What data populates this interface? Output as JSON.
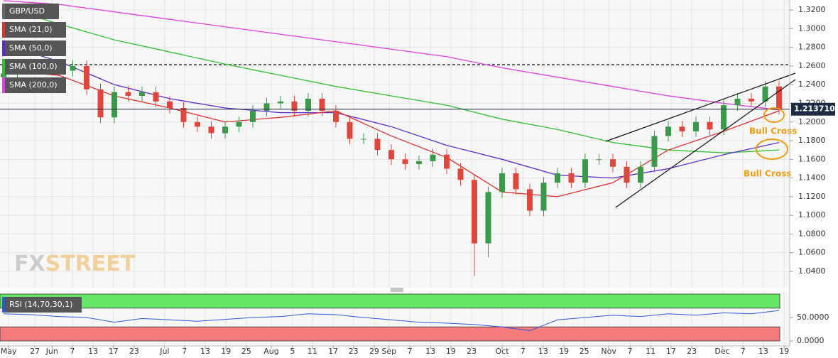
{
  "chart_data": [
    {
      "type": "candlestick",
      "name": "GBP/USD",
      "xlim": [
        0,
        170
      ],
      "ylim": [
        1.0225,
        1.3307
      ],
      "yticks": [
        {
          "value": 1.32,
          "label": "1.3200"
        },
        {
          "value": 1.3,
          "label": "1.3000"
        },
        {
          "value": 1.28,
          "label": "1.2800"
        },
        {
          "value": 1.26,
          "label": "1.2600"
        },
        {
          "value": 1.24,
          "label": "1.2400"
        },
        {
          "value": 1.22,
          "label": "1.2200"
        },
        {
          "value": 1.2,
          "label": "1.2000"
        },
        {
          "value": 1.18,
          "label": "1.1800"
        },
        {
          "value": 1.16,
          "label": "1.1600"
        },
        {
          "value": 1.14,
          "label": "1.1400"
        },
        {
          "value": 1.12,
          "label": "1.1200"
        },
        {
          "value": 1.1,
          "label": "1.1000"
        },
        {
          "value": 1.08,
          "label": "1.0800"
        },
        {
          "value": 1.06,
          "label": "1.0600"
        },
        {
          "value": 1.04,
          "label": "1.0400"
        }
      ],
      "grid": true,
      "up_color": "#3a9a4a",
      "down_color": "#e0463c",
      "candles": {
        "x": [
          0,
          3,
          6,
          9,
          12,
          15,
          18,
          21,
          24,
          27,
          30,
          33,
          36,
          39,
          42,
          45,
          48,
          51,
          54,
          57,
          60,
          63,
          66,
          69,
          72,
          75,
          78,
          81,
          84,
          87,
          90,
          93,
          96,
          99,
          102,
          105,
          108,
          111,
          114,
          117,
          120,
          123,
          126,
          129,
          132,
          135,
          138,
          141,
          144,
          147,
          150,
          153,
          156,
          159,
          162,
          165,
          168
        ],
        "open": [
          1.248,
          1.252,
          1.258,
          1.262,
          1.258,
          1.255,
          1.26,
          1.235,
          1.205,
          1.232,
          1.228,
          1.232,
          1.222,
          1.215,
          1.2,
          1.195,
          1.188,
          1.195,
          1.2,
          1.212,
          1.22,
          1.222,
          1.212,
          1.225,
          1.212,
          1.2,
          1.182,
          1.182,
          1.17,
          1.16,
          1.155,
          1.158,
          1.165,
          1.15,
          1.138,
          1.07,
          1.125,
          1.145,
          1.128,
          1.105,
          1.135,
          1.145,
          1.135,
          1.16,
          1.16,
          1.152,
          1.135,
          1.152,
          1.185,
          1.195,
          1.19,
          1.2,
          1.192,
          1.218,
          1.225,
          1.222,
          1.238
        ],
        "high": [
          1.258,
          1.264,
          1.268,
          1.268,
          1.264,
          1.266,
          1.266,
          1.241,
          1.238,
          1.238,
          1.238,
          1.238,
          1.228,
          1.221,
          1.206,
          1.201,
          1.201,
          1.206,
          1.218,
          1.226,
          1.228,
          1.228,
          1.231,
          1.231,
          1.218,
          1.206,
          1.188,
          1.188,
          1.176,
          1.166,
          1.164,
          1.171,
          1.171,
          1.156,
          1.144,
          1.131,
          1.151,
          1.151,
          1.134,
          1.141,
          1.151,
          1.151,
          1.166,
          1.166,
          1.166,
          1.158,
          1.158,
          1.191,
          1.201,
          1.201,
          1.206,
          1.206,
          1.224,
          1.231,
          1.231,
          1.244,
          1.244
        ],
        "low": [
          1.242,
          1.246,
          1.252,
          1.252,
          1.249,
          1.249,
          1.229,
          1.199,
          1.199,
          1.222,
          1.222,
          1.216,
          1.209,
          1.194,
          1.189,
          1.182,
          1.182,
          1.189,
          1.194,
          1.206,
          1.214,
          1.206,
          1.206,
          1.206,
          1.194,
          1.176,
          1.176,
          1.164,
          1.154,
          1.149,
          1.149,
          1.152,
          1.144,
          1.132,
          1.035,
          1.055,
          1.119,
          1.122,
          1.099,
          1.099,
          1.129,
          1.129,
          1.129,
          1.154,
          1.146,
          1.129,
          1.129,
          1.146,
          1.179,
          1.184,
          1.184,
          1.186,
          1.186,
          1.212,
          1.216,
          1.216,
          1.208
        ],
        "close": [
          1.252,
          1.258,
          1.262,
          1.258,
          1.255,
          1.26,
          1.235,
          1.205,
          1.232,
          1.228,
          1.232,
          1.222,
          1.215,
          1.2,
          1.195,
          1.188,
          1.195,
          1.2,
          1.212,
          1.22,
          1.222,
          1.212,
          1.225,
          1.212,
          1.2,
          1.182,
          1.182,
          1.17,
          1.16,
          1.155,
          1.158,
          1.165,
          1.15,
          1.138,
          1.07,
          1.125,
          1.145,
          1.128,
          1.105,
          1.135,
          1.145,
          1.135,
          1.16,
          1.16,
          1.152,
          1.135,
          1.152,
          1.185,
          1.195,
          1.19,
          1.2,
          1.192,
          1.218,
          1.225,
          1.222,
          1.238,
          1.214
        ]
      },
      "series": [
        {
          "name": "SMA (21,0)",
          "color": "#e0302a",
          "x": [
            0,
            12,
            24,
            36,
            48,
            60,
            72,
            84,
            96,
            108,
            120,
            132,
            144,
            156,
            168
          ],
          "values": [
            1.255,
            1.25,
            1.228,
            1.215,
            1.2,
            1.205,
            1.212,
            1.185,
            1.162,
            1.125,
            1.12,
            1.135,
            1.17,
            1.19,
            1.212
          ]
        },
        {
          "name": "SMA (50,0)",
          "color": "#5b2bd1",
          "x": [
            0,
            12,
            24,
            36,
            48,
            60,
            72,
            84,
            96,
            108,
            120,
            132,
            144,
            156,
            168
          ],
          "values": [
            1.283,
            1.265,
            1.24,
            1.225,
            1.215,
            1.21,
            1.21,
            1.195,
            1.175,
            1.16,
            1.143,
            1.14,
            1.15,
            1.165,
            1.178
          ]
        },
        {
          "name": "SMA (100,0)",
          "color": "#2fbf2f",
          "x": [
            0,
            12,
            24,
            36,
            48,
            60,
            72,
            84,
            96,
            108,
            120,
            132,
            144,
            156,
            168
          ],
          "values": [
            1.323,
            1.305,
            1.288,
            1.275,
            1.262,
            1.25,
            1.238,
            1.228,
            1.218,
            1.203,
            1.192,
            1.178,
            1.17,
            1.167,
            1.17
          ]
        },
        {
          "name": "SMA (200,0)",
          "color": "#e040e0",
          "x": [
            0,
            12,
            24,
            36,
            48,
            60,
            72,
            84,
            96,
            108,
            120,
            132,
            144,
            156,
            168
          ],
          "values": [
            1.33,
            1.326,
            1.318,
            1.31,
            1.302,
            1.294,
            1.286,
            1.278,
            1.27,
            1.258,
            1.248,
            1.238,
            1.228,
            1.22,
            1.213
          ]
        }
      ],
      "last_price": {
        "value": 1.21371,
        "label": "1.213710"
      },
      "annotations": [
        "Bull Cross",
        "Bull Cross"
      ],
      "watermark": [
        "FX",
        "STREET"
      ]
    },
    {
      "type": "line",
      "xlim": [
        0,
        170
      ],
      "ylim": [
        0,
        100
      ],
      "yticks": [
        {
          "value": 50,
          "label": "50.0000"
        },
        {
          "value": 0,
          "label": "0.0000"
        }
      ],
      "bands": [
        {
          "from": 70,
          "to": 100,
          "color": "#66e666"
        },
        {
          "from": 0,
          "to": 30,
          "color": "#f47c7c"
        }
      ],
      "series": [
        {
          "name": "RSI (14,70,30,1)",
          "color": "#3355dd",
          "x": [
            0,
            6,
            12,
            18,
            24,
            30,
            36,
            42,
            48,
            54,
            60,
            66,
            72,
            78,
            84,
            90,
            96,
            102,
            108,
            114,
            120,
            126,
            132,
            138,
            144,
            150,
            156,
            162,
            168
          ],
          "values": [
            58,
            56,
            52,
            50,
            40,
            48,
            45,
            42,
            46,
            50,
            52,
            58,
            56,
            50,
            45,
            40,
            38,
            35,
            30,
            22,
            45,
            50,
            55,
            52,
            58,
            55,
            60,
            58,
            65
          ]
        }
      ],
      "xticks": [
        {
          "value": 1.1,
          "label": "May"
        },
        {
          "value": 6.8,
          "label": "27"
        },
        {
          "value": 10.5,
          "label": "Jun"
        },
        {
          "value": 14.9,
          "label": "7"
        },
        {
          "value": 19.4,
          "label": "13"
        },
        {
          "value": 23.8,
          "label": "17"
        },
        {
          "value": 28.3,
          "label": "23"
        },
        {
          "value": 34.9,
          "label": "Jul"
        },
        {
          "value": 39.2,
          "label": "7"
        },
        {
          "value": 43.7,
          "label": "13"
        },
        {
          "value": 48.2,
          "label": "19"
        },
        {
          "value": 52.6,
          "label": "25"
        },
        {
          "value": 58,
          "label": "Aug"
        },
        {
          "value": 62.6,
          "label": "5"
        },
        {
          "value": 66.9,
          "label": "11"
        },
        {
          "value": 71.4,
          "label": "17"
        },
        {
          "value": 75.8,
          "label": "23"
        },
        {
          "value": 80.3,
          "label": "29"
        },
        {
          "value": 83.5,
          "label": "Sep"
        },
        {
          "value": 88,
          "label": "7"
        },
        {
          "value": 92.5,
          "label": "13"
        },
        {
          "value": 96.9,
          "label": "19"
        },
        {
          "value": 101.4,
          "label": "23"
        },
        {
          "value": 108,
          "label": "Oct"
        },
        {
          "value": 112.5,
          "label": "7"
        },
        {
          "value": 116.9,
          "label": "13"
        },
        {
          "value": 121.4,
          "label": "19"
        },
        {
          "value": 125.8,
          "label": "25"
        },
        {
          "value": 131.1,
          "label": "Nov"
        },
        {
          "value": 135.7,
          "label": "7"
        },
        {
          "value": 140.2,
          "label": "11"
        },
        {
          "value": 144.6,
          "label": "17"
        },
        {
          "value": 149.1,
          "label": "23"
        },
        {
          "value": 155.7,
          "label": "Dec"
        },
        {
          "value": 160.2,
          "label": "7"
        },
        {
          "value": 164.6,
          "label": "13"
        },
        {
          "value": 169.1,
          "label": "19"
        }
      ]
    }
  ]
}
